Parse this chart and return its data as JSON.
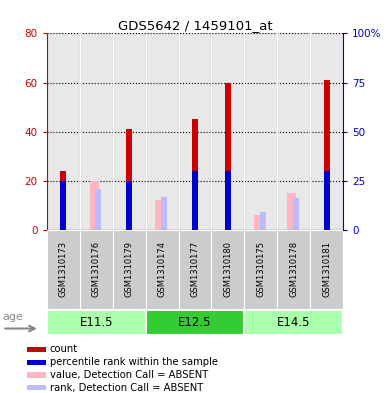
{
  "title": "GDS5642 / 1459101_at",
  "samples": [
    "GSM1310173",
    "GSM1310176",
    "GSM1310179",
    "GSM1310174",
    "GSM1310177",
    "GSM1310180",
    "GSM1310175",
    "GSM1310178",
    "GSM1310181"
  ],
  "count_values": [
    24,
    0,
    41,
    0,
    45,
    60,
    0,
    0,
    61
  ],
  "percentile_values": [
    25,
    0,
    25,
    0,
    30,
    30,
    0,
    0,
    30
  ],
  "absent_value_values": [
    0,
    20,
    0,
    12,
    0,
    0,
    6,
    15,
    0
  ],
  "absent_rank_values": [
    0,
    21,
    0,
    17,
    0,
    0,
    9,
    16,
    0
  ],
  "group_boundaries": [
    [
      0,
      2,
      "E11.5",
      "#AAFFAA"
    ],
    [
      3,
      5,
      "E12.5",
      "#33CC33"
    ],
    [
      6,
      8,
      "E14.5",
      "#AAFFAA"
    ]
  ],
  "ylim_left": [
    0,
    80
  ],
  "ylim_right": [
    0,
    100
  ],
  "yticks_left": [
    0,
    20,
    40,
    60,
    80
  ],
  "yticks_right": [
    0,
    25,
    50,
    75,
    100
  ],
  "yticklabels_right": [
    "0",
    "25",
    "50",
    "75",
    "100%"
  ],
  "left_tick_color": "#CC0000",
  "right_tick_color": "#0000CC",
  "count_color": "#CC0000",
  "percentile_color": "#0000CC",
  "absent_value_color": "#FFB6C1",
  "absent_rank_color": "#BBBBFF",
  "legend_items": [
    {
      "color": "#CC0000",
      "label": "count"
    },
    {
      "color": "#0000CC",
      "label": "percentile rank within the sample"
    },
    {
      "color": "#FFB6C1",
      "label": "value, Detection Call = ABSENT"
    },
    {
      "color": "#BBBBFF",
      "label": "rank, Detection Call = ABSENT"
    }
  ],
  "age_label": "age",
  "sample_bg_color": "#CCCCCC",
  "plot_bg_color": "#FFFFFF"
}
